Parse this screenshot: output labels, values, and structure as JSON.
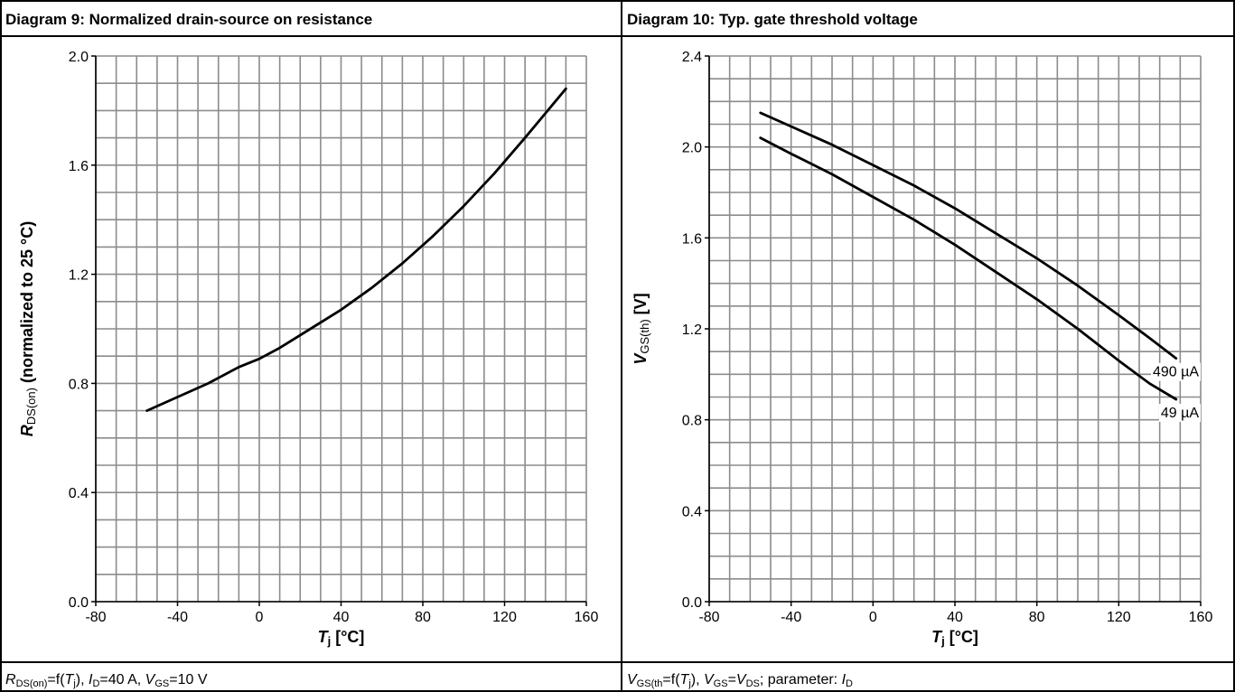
{
  "panels": [
    {
      "header": "Diagram 9: Normalized drain-source on resistance",
      "footer_parts": [
        {
          "t": "R",
          "i": true
        },
        {
          "t": "DS(on)",
          "sub": true
        },
        {
          "t": "=f("
        },
        {
          "t": "T",
          "i": true
        },
        {
          "t": "j",
          "sub": true
        },
        {
          "t": "), "
        },
        {
          "t": "I",
          "i": true
        },
        {
          "t": "D",
          "sub": true
        },
        {
          "t": "=40 A, "
        },
        {
          "t": "V",
          "i": true
        },
        {
          "t": "GS",
          "sub": true
        },
        {
          "t": "=10 V"
        }
      ]
    },
    {
      "header": "Diagram 10: Typ. gate threshold voltage",
      "footer_parts": [
        {
          "t": "V",
          "i": true
        },
        {
          "t": "GS(th",
          "sub": true
        },
        {
          "t": "=f("
        },
        {
          "t": "T",
          "i": true
        },
        {
          "t": "j",
          "sub": true
        },
        {
          "t": "), "
        },
        {
          "t": "V",
          "i": true
        },
        {
          "t": "GS",
          "sub": true
        },
        {
          "t": "="
        },
        {
          "t": "V",
          "i": true
        },
        {
          "t": "DS",
          "sub": true
        },
        {
          "t": "; parameter: "
        },
        {
          "t": "I",
          "i": true
        },
        {
          "t": "D",
          "sub": true
        }
      ]
    }
  ],
  "chart_data": [
    {
      "type": "line",
      "title": "Diagram 9: Normalized drain-source on resistance",
      "xlabel_parts": [
        {
          "t": "T",
          "i": true,
          "b": true
        },
        {
          "t": "j",
          "sub": true,
          "b": true
        },
        {
          "t": " [°C]",
          "b": true
        }
      ],
      "ylabel_parts": [
        {
          "t": "R",
          "i": true,
          "b": true
        },
        {
          "t": "DS(on)",
          "sub": true
        },
        {
          "t": " (normalized to 25 °C)",
          "b": true
        }
      ],
      "xlim": [
        -80,
        160
      ],
      "ylim": [
        0,
        2.0
      ],
      "xticks": [
        -80,
        -40,
        0,
        40,
        80,
        120,
        160
      ],
      "yticks": [
        0.0,
        0.4,
        0.8,
        1.2,
        1.6,
        2.0
      ],
      "ytick_labels": [
        "0.0",
        "0.4",
        "0.8",
        "1.2",
        "1.6",
        "2.0"
      ],
      "grid": true,
      "grid_x_step": 10,
      "grid_y_step": 0.1,
      "series": [
        {
          "x": [
            -55,
            -40,
            -25,
            -10,
            0,
            10,
            25,
            40,
            55,
            70,
            85,
            100,
            115,
            130,
            150
          ],
          "y": [
            0.7,
            0.75,
            0.8,
            0.86,
            0.89,
            0.93,
            1.0,
            1.07,
            1.15,
            1.24,
            1.34,
            1.45,
            1.57,
            1.7,
            1.88
          ]
        }
      ]
    },
    {
      "type": "line",
      "title": "Diagram 10: Typ. gate threshold voltage",
      "xlabel_parts": [
        {
          "t": "T",
          "i": true,
          "b": true
        },
        {
          "t": "j",
          "sub": true,
          "b": true
        },
        {
          "t": " [°C]",
          "b": true
        }
      ],
      "ylabel_parts": [
        {
          "t": "V",
          "i": true,
          "b": true
        },
        {
          "t": "GS(th)",
          "sub": true
        },
        {
          "t": " [V]",
          "b": true
        }
      ],
      "xlim": [
        -80,
        160
      ],
      "ylim": [
        0,
        2.4
      ],
      "xticks": [
        -80,
        -40,
        0,
        40,
        80,
        120,
        160
      ],
      "yticks": [
        0.0,
        0.4,
        0.8,
        1.2,
        1.6,
        2.0,
        2.4
      ],
      "ytick_labels": [
        "0.0",
        "0.4",
        "0.8",
        "1.2",
        "1.6",
        "2.0",
        "2.4"
      ],
      "grid": true,
      "grid_x_step": 10,
      "grid_y_step": 0.1,
      "series": [
        {
          "name": "490 µA",
          "x": [
            -55,
            -40,
            -20,
            0,
            20,
            40,
            60,
            80,
            100,
            120,
            135,
            148
          ],
          "y": [
            2.15,
            2.09,
            2.01,
            1.92,
            1.83,
            1.73,
            1.62,
            1.51,
            1.39,
            1.26,
            1.16,
            1.07
          ]
        },
        {
          "name": "49 µA",
          "x": [
            -55,
            -40,
            -20,
            0,
            20,
            40,
            60,
            80,
            100,
            120,
            135,
            148
          ],
          "y": [
            2.04,
            1.97,
            1.88,
            1.78,
            1.68,
            1.57,
            1.45,
            1.33,
            1.2,
            1.06,
            0.96,
            0.89
          ]
        }
      ]
    }
  ]
}
